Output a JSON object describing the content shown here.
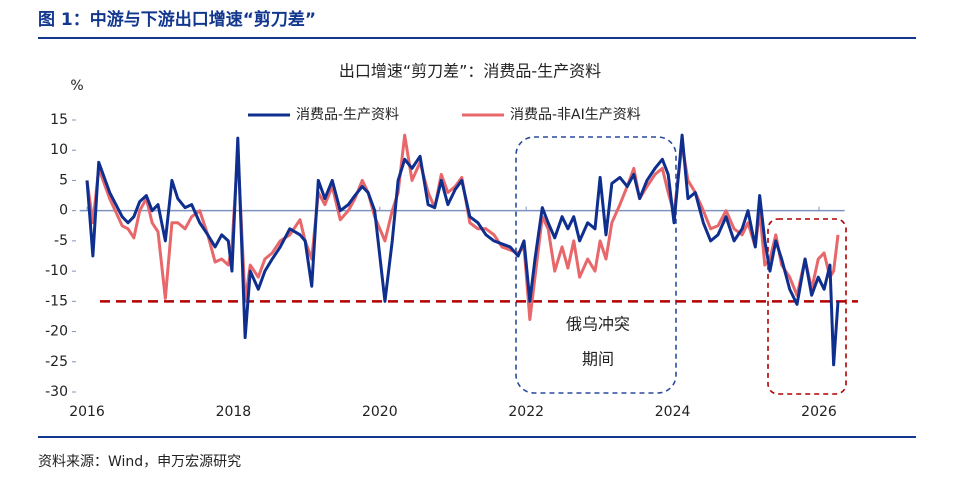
{
  "header": {
    "title": "图 1：中游与下游出口增速“剪刀差”"
  },
  "chart_data": {
    "type": "line",
    "title": "出口增速“剪刀差”：消费品-生产资料",
    "y_unit": "%",
    "x": [
      2016.0,
      2016.08,
      2016.16,
      2016.31,
      2016.48,
      2016.56,
      2016.64,
      2016.72,
      2016.81,
      2016.89,
      2016.97,
      2017.07,
      2017.16,
      2017.24,
      2017.34,
      2017.43,
      2017.54,
      2017.65,
      2017.75,
      2017.84,
      2017.93,
      2017.98,
      2018.06,
      2018.16,
      2018.23,
      2018.34,
      2018.43,
      2018.53,
      2018.64,
      2018.77,
      2018.91,
      2018.98,
      2019.07,
      2019.16,
      2019.25,
      2019.35,
      2019.46,
      2019.57,
      2019.66,
      2019.76,
      2019.84,
      2019.93,
      2020.07,
      2020.17,
      2020.25,
      2020.34,
      2020.44,
      2020.55,
      2020.66,
      2020.75,
      2020.84,
      2020.93,
      2021.03,
      2021.12,
      2021.23,
      2021.34,
      2021.45,
      2021.56,
      2021.67,
      2021.78,
      2021.89,
      2021.97,
      2022.05,
      2022.12,
      2022.22,
      2022.3,
      2022.39,
      2022.49,
      2022.57,
      2022.65,
      2022.73,
      2022.84,
      2022.94,
      2023.01,
      2023.09,
      2023.17,
      2023.28,
      2023.38,
      2023.47,
      2023.55,
      2023.65,
      2023.76,
      2023.86,
      2023.94,
      2024.02,
      2024.13,
      2024.21,
      2024.31,
      2024.42,
      2024.52,
      2024.62,
      2024.73,
      2024.84,
      2024.95,
      2025.03,
      2025.13,
      2025.19,
      2025.26,
      2025.33,
      2025.41,
      2025.49,
      2025.6,
      2025.7,
      2025.81,
      2025.9,
      2025.99,
      2026.07,
      2026.15,
      2026.2,
      2026.26
    ],
    "series": [
      {
        "name": "消费品-生产资料",
        "color": "#0f2f8f",
        "values": [
          5,
          -7.5,
          8,
          3,
          -1,
          -2,
          -1,
          1.5,
          2.5,
          0,
          1,
          -5,
          5,
          2,
          0.5,
          1,
          -2,
          -4,
          -6,
          -4,
          -5,
          -10,
          12,
          -21,
          -10,
          -13,
          -10,
          -8,
          -6,
          -3,
          -4,
          -5,
          -12.5,
          5,
          2,
          5,
          0,
          1,
          2.5,
          4,
          3,
          0,
          -15,
          -5,
          5,
          8.5,
          7,
          9,
          1,
          0.5,
          5,
          1,
          3.5,
          5,
          -1,
          -2,
          -4,
          -5,
          -5.5,
          -6,
          -7.5,
          -5,
          -15,
          -8,
          0.5,
          -2,
          -4.5,
          -1,
          -3,
          -1,
          -5,
          -2,
          -3,
          5.5,
          -4,
          4.5,
          5.5,
          4,
          6,
          2,
          5,
          7,
          8.5,
          6,
          -2,
          12.5,
          2,
          3,
          -2,
          -5,
          -4,
          -1,
          -5,
          -3,
          0,
          -6,
          2.5,
          -5,
          -10,
          -5,
          -8,
          -13,
          -15.5,
          -8,
          -14,
          -11,
          -13,
          -9,
          -25.5,
          -15
        ]
      },
      {
        "name": "消费品-非AI生产资料",
        "color": "#e8676a",
        "values": [
          5,
          -2,
          7,
          2,
          -2.5,
          -3,
          -4.5,
          0,
          2,
          -2,
          -3.5,
          -14.5,
          -2,
          -2,
          -3,
          -1,
          0,
          -4,
          -8.5,
          -8,
          -9,
          -6,
          10,
          -15,
          -9,
          -11,
          -8,
          -7,
          -5,
          -4,
          -1.5,
          -5,
          -8,
          3,
          1,
          4,
          -1.5,
          0,
          2,
          5,
          3,
          -1,
          -5,
          0,
          3,
          12.5,
          5,
          8,
          3,
          0.5,
          6,
          3,
          4,
          5.5,
          -2,
          -3,
          -3,
          -4,
          -6,
          -6.5,
          -7,
          -6,
          -18,
          -11,
          -1,
          -3,
          -10,
          -6,
          -9.5,
          -5,
          -11,
          -8,
          -10,
          -5,
          -8,
          -2,
          1,
          4,
          7,
          2,
          4,
          6,
          7,
          3,
          -0.5,
          11,
          5,
          3,
          0,
          -3,
          -2.5,
          0,
          -3,
          -4,
          -2,
          -6,
          0,
          -9,
          -8,
          -4,
          -9,
          -11,
          -14,
          -8,
          -13,
          -8,
          -7,
          -11,
          -10,
          -4
        ]
      }
    ],
    "xlim": [
      2015.9,
      2026.35
    ],
    "xticks": [
      2016,
      2018,
      2020,
      2022,
      2024,
      2026
    ],
    "ylim": [
      -30,
      15
    ],
    "yticks": [
      -30,
      -25,
      -20,
      -15,
      -10,
      -5,
      0,
      5,
      10,
      15
    ],
    "reference_line": {
      "value": -15,
      "color": "#b00000"
    },
    "annotations": [
      "俄乌冲突",
      "期间"
    ]
  },
  "footer": {
    "source": "资料来源：Wind，申万宏源研究"
  }
}
